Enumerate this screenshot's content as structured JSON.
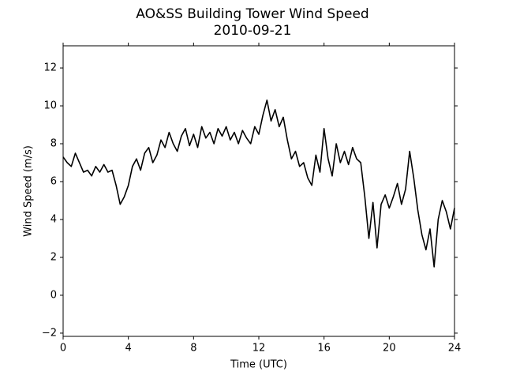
{
  "chart_data": {
    "type": "line",
    "title": "AO&SS Building Tower Wind Speed",
    "subtitle": "2010-09-21",
    "x_label": "Time (UTC)",
    "y_label": "Wind Speed (m/s)",
    "xlim": [
      0,
      24
    ],
    "xticks": [
      0,
      4,
      8,
      12,
      16,
      20,
      24
    ],
    "ylim": [
      -2.17,
      13.17
    ],
    "yticks": [
      {
        "value": -2,
        "label": "−2"
      },
      0,
      2,
      4,
      6,
      8,
      10,
      12
    ],
    "grid": false,
    "series": [
      {
        "color": "#000000",
        "x": [
          0,
          0.25,
          0.5,
          0.75,
          1,
          1.25,
          1.5,
          1.75,
          2,
          2.25,
          2.5,
          2.75,
          3,
          3.25,
          3.5,
          3.75,
          4,
          4.25,
          4.5,
          4.75,
          5,
          5.25,
          5.5,
          5.75,
          6,
          6.25,
          6.5,
          6.75,
          7,
          7.25,
          7.5,
          7.75,
          8,
          8.25,
          8.5,
          8.75,
          9,
          9.25,
          9.5,
          9.75,
          10,
          10.25,
          10.5,
          10.75,
          11,
          11.25,
          11.5,
          11.75,
          12,
          12.25,
          12.5,
          12.75,
          13,
          13.25,
          13.5,
          13.75,
          14,
          14.25,
          14.5,
          14.75,
          15,
          15.25,
          15.5,
          15.75,
          16,
          16.25,
          16.5,
          16.75,
          17,
          17.25,
          17.5,
          17.75,
          18,
          18.25,
          18.5,
          18.75,
          19,
          19.25,
          19.5,
          19.75,
          20,
          20.25,
          20.5,
          20.75,
          21,
          21.25,
          21.5,
          21.75,
          22,
          22.25,
          22.5,
          22.75,
          23,
          23.25,
          23.5,
          23.75,
          24
        ],
        "values": [
          7.3,
          7.0,
          6.8,
          7.5,
          7.0,
          6.5,
          6.6,
          6.3,
          6.8,
          6.5,
          6.9,
          6.5,
          6.6,
          5.8,
          4.8,
          5.2,
          5.8,
          6.8,
          7.2,
          6.6,
          7.5,
          7.8,
          7.0,
          7.4,
          8.2,
          7.8,
          8.6,
          8.0,
          7.6,
          8.4,
          8.8,
          7.9,
          8.5,
          7.8,
          8.9,
          8.3,
          8.6,
          8.0,
          8.8,
          8.4,
          8.9,
          8.2,
          8.6,
          8.0,
          8.7,
          8.3,
          8.0,
          8.9,
          8.5,
          9.5,
          10.3,
          9.2,
          9.8,
          8.9,
          9.4,
          8.2,
          7.2,
          7.6,
          6.8,
          7.0,
          6.2,
          5.8,
          7.4,
          6.5,
          8.8,
          7.2,
          6.3,
          8.0,
          7.0,
          7.6,
          6.9,
          7.8,
          7.2,
          7.0,
          5.2,
          3.0,
          4.9,
          2.5,
          4.8,
          5.3,
          4.6,
          5.2,
          5.9,
          4.8,
          5.6,
          7.6,
          6.2,
          4.5,
          3.2,
          2.4,
          3.5,
          1.5,
          4.0,
          5.0,
          4.4,
          3.5,
          4.6
        ]
      }
    ]
  }
}
